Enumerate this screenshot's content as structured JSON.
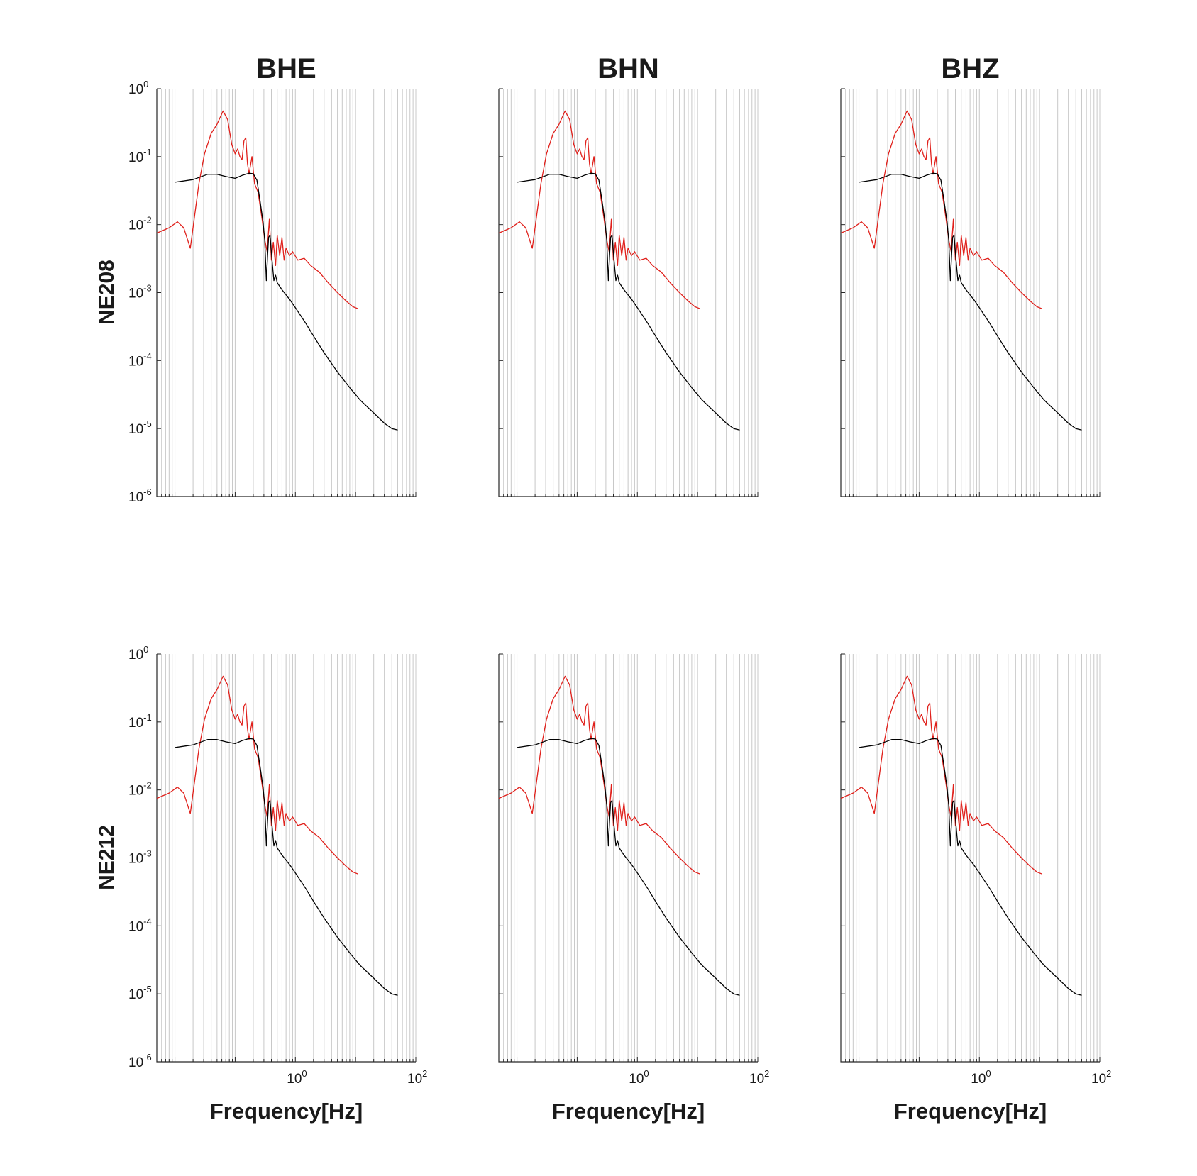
{
  "figure": {
    "column_titles": [
      "BHE",
      "BHN",
      "BHZ"
    ],
    "row_labels": [
      "NE208",
      "NE212"
    ]
  },
  "chart_data": {
    "type": "line",
    "layout": "grid 2 rows x 3 columns of identical log-log panels",
    "xlabel": "Frequency[Hz]",
    "x_scale": "log",
    "y_scale": "log",
    "xlim": [
      0.005,
      100
    ],
    "ylim": [
      1e-06,
      1
    ],
    "x_tick_labels": [
      {
        "base": "10",
        "exp": "0",
        "value": 1
      },
      {
        "base": "10",
        "exp": "2",
        "value": 100
      }
    ],
    "y_tick_labels": [
      {
        "base": "10",
        "exp": "0",
        "value": 1
      },
      {
        "base": "10",
        "exp": "-1",
        "value": 0.1
      },
      {
        "base": "10",
        "exp": "-2",
        "value": 0.01
      },
      {
        "base": "10",
        "exp": "-3",
        "value": 0.001
      },
      {
        "base": "10",
        "exp": "-4",
        "value": 0.0001
      },
      {
        "base": "10",
        "exp": "-5",
        "value": 1e-05
      },
      {
        "base": "10",
        "exp": "-6",
        "value": 1e-06
      }
    ],
    "grid": "vertical minor and major lines on x axis",
    "series": [
      {
        "color": "#e0201b",
        "points": [
          [
            0.005,
            0.0075
          ],
          [
            0.008,
            0.009
          ],
          [
            0.011,
            0.011
          ],
          [
            0.014,
            0.009
          ],
          [
            0.018,
            0.0045
          ],
          [
            0.025,
            0.04
          ],
          [
            0.031,
            0.11
          ],
          [
            0.04,
            0.22
          ],
          [
            0.05,
            0.3
          ],
          [
            0.063,
            0.47
          ],
          [
            0.075,
            0.35
          ],
          [
            0.088,
            0.15
          ],
          [
            0.1,
            0.11
          ],
          [
            0.11,
            0.13
          ],
          [
            0.12,
            0.1
          ],
          [
            0.13,
            0.09
          ],
          [
            0.14,
            0.17
          ],
          [
            0.15,
            0.19
          ],
          [
            0.16,
            0.08
          ],
          [
            0.17,
            0.055
          ],
          [
            0.19,
            0.1
          ],
          [
            0.21,
            0.04
          ],
          [
            0.24,
            0.03
          ],
          [
            0.28,
            0.012
          ],
          [
            0.31,
            0.006
          ],
          [
            0.34,
            0.004
          ],
          [
            0.37,
            0.012
          ],
          [
            0.4,
            0.003
          ],
          [
            0.43,
            0.0055
          ],
          [
            0.47,
            0.0025
          ],
          [
            0.5,
            0.007
          ],
          [
            0.55,
            0.0035
          ],
          [
            0.6,
            0.0065
          ],
          [
            0.65,
            0.003
          ],
          [
            0.7,
            0.0045
          ],
          [
            0.8,
            0.0035
          ],
          [
            0.9,
            0.004
          ],
          [
            1.1,
            0.003
          ],
          [
            1.4,
            0.0032
          ],
          [
            1.8,
            0.0025
          ],
          [
            2.5,
            0.002
          ],
          [
            3.5,
            0.0014
          ],
          [
            5,
            0.001
          ],
          [
            7,
            0.00075
          ],
          [
            9,
            0.00062
          ],
          [
            11,
            0.00058
          ]
        ]
      },
      {
        "color": "#000000",
        "points": [
          [
            0.01,
            0.042
          ],
          [
            0.02,
            0.046
          ],
          [
            0.035,
            0.055
          ],
          [
            0.05,
            0.055
          ],
          [
            0.07,
            0.051
          ],
          [
            0.1,
            0.048
          ],
          [
            0.13,
            0.053
          ],
          [
            0.17,
            0.057
          ],
          [
            0.2,
            0.056
          ],
          [
            0.23,
            0.045
          ],
          [
            0.26,
            0.022
          ],
          [
            0.29,
            0.011
          ],
          [
            0.31,
            0.006
          ],
          [
            0.33,
            0.0015
          ],
          [
            0.345,
            0.0035
          ],
          [
            0.36,
            0.0065
          ],
          [
            0.38,
            0.007
          ],
          [
            0.41,
            0.003
          ],
          [
            0.44,
            0.0015
          ],
          [
            0.47,
            0.0018
          ],
          [
            0.5,
            0.0014
          ],
          [
            0.6,
            0.0011
          ],
          [
            0.8,
            0.0008
          ],
          [
            1,
            0.0006
          ],
          [
            1.5,
            0.00035
          ],
          [
            2,
            0.00023
          ],
          [
            3,
            0.00013
          ],
          [
            5,
            6.8e-05
          ],
          [
            8,
            4e-05
          ],
          [
            12,
            2.6e-05
          ],
          [
            20,
            1.7e-05
          ],
          [
            30,
            1.2e-05
          ],
          [
            40,
            1e-05
          ],
          [
            50,
            9.5e-06
          ]
        ]
      }
    ]
  }
}
